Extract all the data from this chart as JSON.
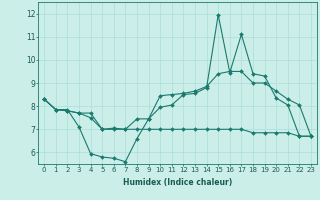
{
  "xlabel": "Humidex (Indice chaleur)",
  "ylabel": "",
  "bg_color": "#cceee8",
  "grid_color": "#aaddda",
  "line_color": "#1a7a6e",
  "xlim": [
    -0.5,
    23.5
  ],
  "ylim": [
    5.5,
    12.5
  ],
  "yticks": [
    6,
    7,
    8,
    9,
    10,
    11,
    12
  ],
  "xticks": [
    0,
    1,
    2,
    3,
    4,
    5,
    6,
    7,
    8,
    9,
    10,
    11,
    12,
    13,
    14,
    15,
    16,
    17,
    18,
    19,
    20,
    21,
    22,
    23
  ],
  "series": {
    "line1_x": [
      0,
      1,
      2,
      3,
      4,
      5,
      6,
      7,
      8,
      9,
      10,
      11,
      12,
      13,
      14,
      15,
      16,
      17,
      18,
      19,
      20,
      21,
      22,
      23
    ],
    "line1_y": [
      8.3,
      7.85,
      7.85,
      7.1,
      5.95,
      5.8,
      5.75,
      5.6,
      6.6,
      7.45,
      7.95,
      8.05,
      8.5,
      8.55,
      8.8,
      11.95,
      9.45,
      11.1,
      9.4,
      9.3,
      8.35,
      8.05,
      6.7,
      6.7
    ],
    "line2_x": [
      0,
      1,
      2,
      3,
      4,
      5,
      6,
      7,
      8,
      9,
      10,
      11,
      12,
      13,
      14,
      15,
      16,
      17,
      18,
      19,
      20,
      21,
      22,
      23
    ],
    "line2_y": [
      8.3,
      7.85,
      7.8,
      7.7,
      7.7,
      7.0,
      7.05,
      7.0,
      7.45,
      7.45,
      8.45,
      8.5,
      8.55,
      8.65,
      8.85,
      9.4,
      9.5,
      9.5,
      9.0,
      9.0,
      8.65,
      8.3,
      8.05,
      6.7
    ],
    "line3_x": [
      0,
      1,
      2,
      3,
      4,
      5,
      6,
      7,
      8,
      9,
      10,
      11,
      12,
      13,
      14,
      15,
      16,
      17,
      18,
      19,
      20,
      21,
      22,
      23
    ],
    "line3_y": [
      8.3,
      7.85,
      7.8,
      7.7,
      7.5,
      7.0,
      7.0,
      7.0,
      7.0,
      7.0,
      7.0,
      7.0,
      7.0,
      7.0,
      7.0,
      7.0,
      7.0,
      7.0,
      6.85,
      6.85,
      6.85,
      6.85,
      6.7,
      6.7
    ]
  },
  "marker": "D",
  "markersize": 2.0,
  "linewidth": 0.8,
  "xlabel_fontsize": 5.5,
  "tick_fontsize": 5.0,
  "xlabel_fontweight": "bold"
}
